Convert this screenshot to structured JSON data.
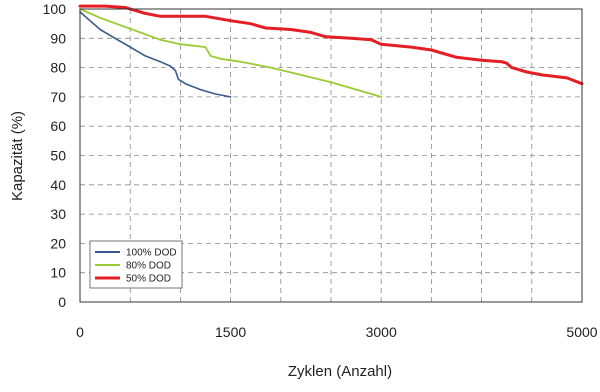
{
  "chart_data": {
    "type": "line",
    "title": "",
    "xlabel": "Zyklen (Anzahl)",
    "ylabel": "Kapazität (%)",
    "xlim": [
      0,
      5000
    ],
    "ylim": [
      0,
      100
    ],
    "x_ticks": [
      0,
      1500,
      3000,
      5000
    ],
    "y_ticks": [
      0,
      10,
      20,
      30,
      40,
      50,
      60,
      70,
      80,
      90,
      100
    ],
    "grid": "dashed",
    "legend_position": "bottom-left",
    "series": [
      {
        "name": "100% DOD",
        "color": "#3a5a8c",
        "points": [
          [
            0,
            99
          ],
          [
            100,
            96
          ],
          [
            200,
            93
          ],
          [
            350,
            90
          ],
          [
            500,
            87
          ],
          [
            650,
            84
          ],
          [
            800,
            82
          ],
          [
            900,
            80.5
          ],
          [
            950,
            79
          ],
          [
            980,
            76
          ],
          [
            1050,
            74.5
          ],
          [
            1200,
            72.5
          ],
          [
            1350,
            71
          ],
          [
            1500,
            70
          ]
        ]
      },
      {
        "name": "80% DOD",
        "color": "#99cc33",
        "points": [
          [
            0,
            100
          ],
          [
            200,
            97
          ],
          [
            400,
            94.5
          ],
          [
            600,
            92
          ],
          [
            800,
            89.5
          ],
          [
            1000,
            88
          ],
          [
            1250,
            87
          ],
          [
            1300,
            84
          ],
          [
            1400,
            83
          ],
          [
            1600,
            82
          ],
          [
            1900,
            80
          ],
          [
            2200,
            77.5
          ],
          [
            2500,
            75
          ],
          [
            2800,
            72
          ],
          [
            3000,
            70
          ]
        ]
      },
      {
        "name": "50% DOD",
        "color": "#e31e24",
        "points": [
          [
            0,
            101
          ],
          [
            250,
            101
          ],
          [
            450,
            100.5
          ],
          [
            650,
            98.5
          ],
          [
            800,
            97.5
          ],
          [
            1000,
            97.5
          ],
          [
            1250,
            97.5
          ],
          [
            1500,
            96
          ],
          [
            1700,
            95
          ],
          [
            1850,
            93.5
          ],
          [
            2100,
            93
          ],
          [
            2300,
            92
          ],
          [
            2450,
            90.5
          ],
          [
            2700,
            90
          ],
          [
            2900,
            89.5
          ],
          [
            3000,
            88
          ],
          [
            3300,
            87
          ],
          [
            3500,
            86
          ],
          [
            3750,
            83.5
          ],
          [
            4000,
            82.5
          ],
          [
            4200,
            82
          ],
          [
            4250,
            81.5
          ],
          [
            4300,
            80
          ],
          [
            4450,
            78.5
          ],
          [
            4600,
            77.5
          ],
          [
            4850,
            76.5
          ],
          [
            5000,
            74.5
          ]
        ]
      }
    ]
  }
}
